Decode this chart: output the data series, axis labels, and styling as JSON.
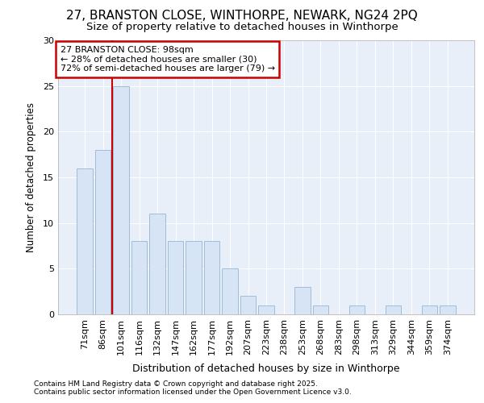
{
  "title_line1": "27, BRANSTON CLOSE, WINTHORPE, NEWARK, NG24 2PQ",
  "title_line2": "Size of property relative to detached houses in Winthorpe",
  "xlabel": "Distribution of detached houses by size in Winthorpe",
  "ylabel": "Number of detached properties",
  "categories": [
    "71sqm",
    "86sqm",
    "101sqm",
    "116sqm",
    "132sqm",
    "147sqm",
    "162sqm",
    "177sqm",
    "192sqm",
    "207sqm",
    "223sqm",
    "238sqm",
    "253sqm",
    "268sqm",
    "283sqm",
    "298sqm",
    "313sqm",
    "329sqm",
    "344sqm",
    "359sqm",
    "374sqm"
  ],
  "values": [
    16,
    18,
    25,
    8,
    11,
    8,
    8,
    8,
    5,
    2,
    1,
    0,
    3,
    1,
    0,
    1,
    0,
    1,
    0,
    1,
    1
  ],
  "bar_color": "#d6e4f5",
  "bar_edge_color": "#a0bcd8",
  "bar_linewidth": 0.7,
  "red_line_x": 1.5,
  "annotation_text": "27 BRANSTON CLOSE: 98sqm\n← 28% of detached houses are smaller (30)\n72% of semi-detached houses are larger (79) →",
  "annotation_box_color": "#ffffff",
  "annotation_box_edge": "#cc0000",
  "fig_background_color": "#ffffff",
  "plot_bg_color": "#e8eff8",
  "ylim": [
    0,
    30
  ],
  "yticks": [
    0,
    5,
    10,
    15,
    20,
    25,
    30
  ],
  "footer_line1": "Contains HM Land Registry data © Crown copyright and database right 2025.",
  "footer_line2": "Contains public sector information licensed under the Open Government Licence v3.0.",
  "red_line_color": "#cc0000",
  "grid_color": "#ffffff",
  "title_fontsize": 11,
  "subtitle_fontsize": 9.5,
  "tick_fontsize": 8,
  "ylabel_fontsize": 8.5,
  "xlabel_fontsize": 9,
  "footer_fontsize": 6.5,
  "annotation_fontsize": 8
}
